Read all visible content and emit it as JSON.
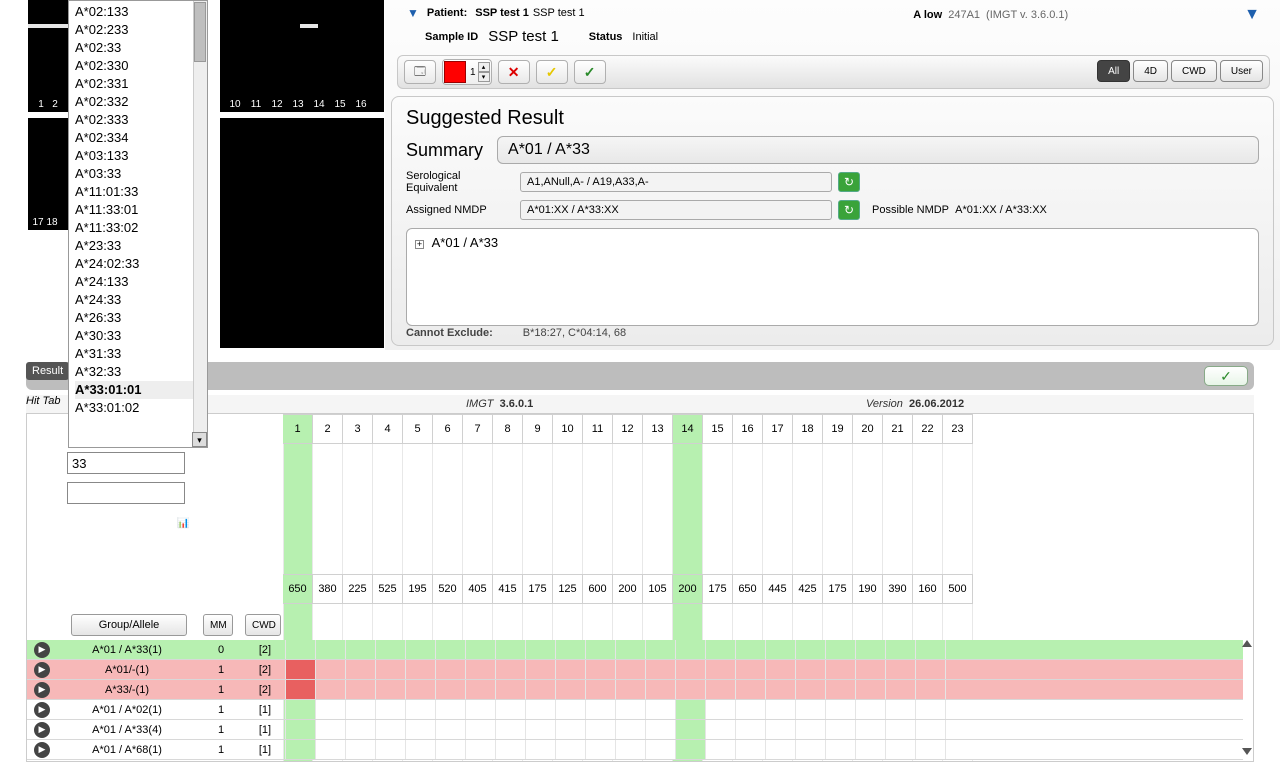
{
  "header": {
    "patient_label": "Patient:",
    "patient_value_bold": "SSP test 1",
    "patient_value_rest": "SSP test 1",
    "sample_label": "Sample ID",
    "sample_value": "SSP test 1",
    "status_label": "Status",
    "status_value": "Initial",
    "locus_label": "A low",
    "kit": "247A1",
    "imgt": "(IMGT v. 3.6.0.1)"
  },
  "filter_buttons": {
    "all": "All",
    "fourd": "4D",
    "cwd": "CWD",
    "user": "User"
  },
  "result_panel": {
    "title": "Suggested Result",
    "summary_label": "Summary",
    "summary_value": "A*01 / A*33",
    "sero_label": "Serological Equivalent",
    "sero_value": "A1,ANull,A- / A19,A33,A-",
    "nmdp_label": "Assigned NMDP",
    "nmdp_value": "A*01:XX / A*33:XX",
    "possible_label": "Possible NMDP",
    "possible_value": "A*01:XX / A*33:XX",
    "tree_item": "A*01 / A*33",
    "cannot_label": "Cannot Exclude:",
    "cannot_value": "B*18:27, C*04:14, 68"
  },
  "version_row": {
    "imgt_label": "IMGT",
    "imgt_value": "3.6.0.1",
    "version_label": "Version",
    "version_value": "26.06.2012"
  },
  "dropdown": {
    "items": [
      "A*02:133",
      "A*02:233",
      "A*02:33",
      "A*02:330",
      "A*02:331",
      "A*02:332",
      "A*02:333",
      "A*02:334",
      "A*03:133",
      "A*03:33",
      "A*11:01:33",
      "A*11:33:01",
      "A*11:33:02",
      "A*23:33",
      "A*24:02:33",
      "A*24:133",
      "A*24:33",
      "A*26:33",
      "A*30:33",
      "A*31:33",
      "A*32:33",
      "A*33:01:01",
      "A*33:01:02"
    ],
    "selected_index": 21
  },
  "result_button": "Result",
  "hittab_label": "Hit Tab",
  "hit_panel": {
    "search_value": "33",
    "ga_button": "Group/Allele",
    "mm_button": "MM",
    "cwd_button": "CWD",
    "col_indices": [
      "1",
      "2",
      "3",
      "4",
      "5",
      "6",
      "7",
      "8",
      "9",
      "10",
      "11",
      "12",
      "13",
      "14",
      "15",
      "16",
      "17",
      "18",
      "19",
      "20",
      "21",
      "22",
      "23"
    ],
    "col_values": [
      "650",
      "380",
      "225",
      "525",
      "195",
      "520",
      "405",
      "415",
      "175",
      "125",
      "600",
      "200",
      "105",
      "200",
      "175",
      "650",
      "445",
      "425",
      "175",
      "190",
      "390",
      "160",
      "500"
    ],
    "highlight_cols": [
      0,
      13
    ],
    "rows": [
      {
        "ga": "A*01 / A*33(1)",
        "mm": "0",
        "cwd": "[2]",
        "cls": "green"
      },
      {
        "ga": "A*01/-(1)",
        "mm": "1",
        "cwd": "[2]",
        "cls": "red"
      },
      {
        "ga": "A*33/-(1)",
        "mm": "1",
        "cwd": "[2]",
        "cls": "red"
      },
      {
        "ga": "A*01 / A*02(1)",
        "mm": "1",
        "cwd": "[1]",
        "cls": "white"
      },
      {
        "ga": "A*01 / A*33(4)",
        "mm": "1",
        "cwd": "[1]",
        "cls": "white"
      },
      {
        "ga": "A*01 / A*68(1)",
        "mm": "1",
        "cwd": "[1]",
        "cls": "white"
      }
    ]
  },
  "gel": {
    "lanes_a": [
      "1",
      "2"
    ],
    "lanes_b": [
      "10",
      "11",
      "12",
      "13",
      "14",
      "15",
      "16"
    ],
    "lanes_c": [
      "17",
      "18"
    ]
  },
  "colors": {
    "green_hi": "#b7f0b0",
    "red_hi": "#f7b8b8"
  }
}
